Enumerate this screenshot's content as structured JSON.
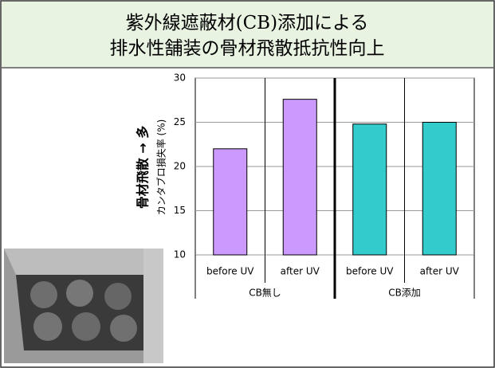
{
  "chart_data": {
    "type": "bar",
    "title_lines": [
      "紫外線遮蔽材(CB)添加による",
      "排水性舗装の骨材飛散抵抗性向上"
    ],
    "y_annotation": "骨材飛散 → 多",
    "y_label": "カンタブロ損失率 (%)",
    "categories": [
      "before UV",
      "after UV",
      "before UV",
      "after UV"
    ],
    "groups": [
      "CB無し",
      "CB添加"
    ],
    "values": [
      22,
      27.6,
      24.8,
      25.0
    ],
    "colors": [
      "#cc99ff",
      "#cc99ff",
      "#33cccc",
      "#33cccc"
    ],
    "ylim": [
      10,
      30
    ],
    "yticks": [
      10,
      15,
      20,
      25,
      30
    ],
    "grid": true
  }
}
